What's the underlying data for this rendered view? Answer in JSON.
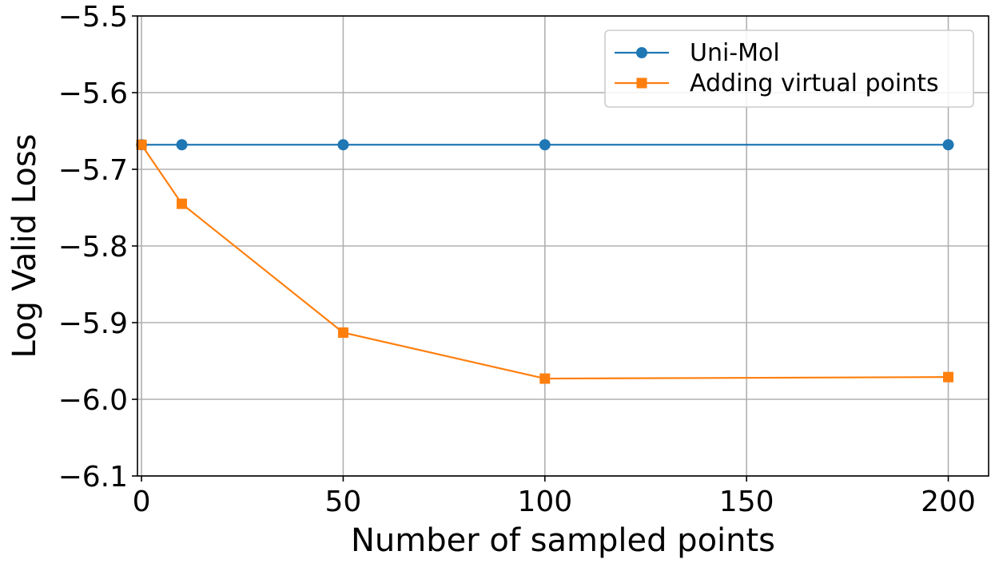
{
  "chart_data": {
    "type": "line",
    "xlabel": "Number of sampled points",
    "ylabel": "Log Valid Loss",
    "xlim": [
      -1,
      210
    ],
    "ylim": [
      -6.1,
      -5.5
    ],
    "xticks": [
      0,
      50,
      100,
      150,
      200
    ],
    "xtick_labels": [
      "0",
      "50",
      "100",
      "150",
      "200"
    ],
    "yticks": [
      -6.1,
      -6.0,
      -5.9,
      -5.8,
      -5.7,
      -5.6,
      -5.5
    ],
    "ytick_labels": [
      "−6.1",
      "−6.0",
      "−5.9",
      "−5.8",
      "−5.7",
      "−5.6",
      "−5.5"
    ],
    "grid": true,
    "legend_position": "top-right",
    "series": [
      {
        "name": "Uni-Mol",
        "marker": "circle",
        "color": "#1f77b4",
        "x": [
          0,
          10,
          50,
          100,
          200
        ],
        "y": [
          -5.668,
          -5.668,
          -5.668,
          -5.668,
          -5.668
        ]
      },
      {
        "name": "Adding virtual points",
        "marker": "square",
        "color": "#ff7f0e",
        "x": [
          0,
          10,
          50,
          100,
          200
        ],
        "y": [
          -5.668,
          -5.745,
          -5.913,
          -5.973,
          -5.971
        ]
      }
    ]
  }
}
